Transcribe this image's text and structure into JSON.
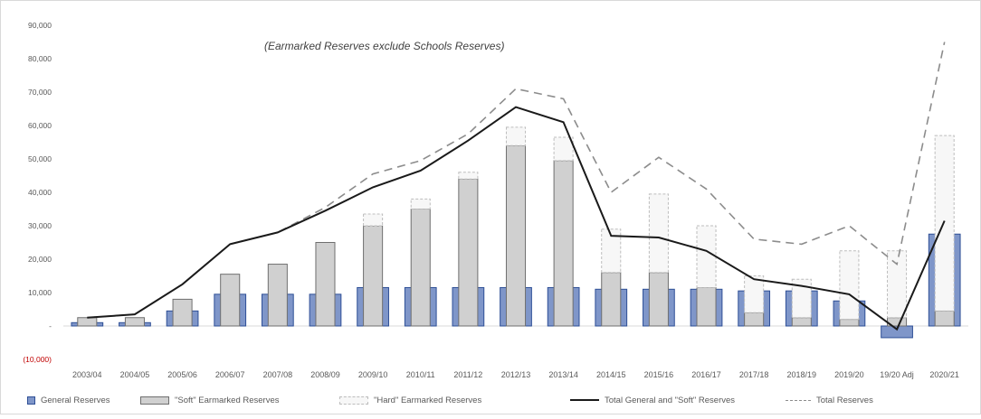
{
  "chart_data": {
    "type": "bar",
    "title": "",
    "annotation": "(Earmarked Reserves exclude Schools Reserves)",
    "categories": [
      "2003/04",
      "2004/05",
      "2005/06",
      "2006/07",
      "2007/08",
      "2008/09",
      "2009/10",
      "2010/11",
      "2011/12",
      "2012/13",
      "2013/14",
      "2014/15",
      "2015/16",
      "2016/17",
      "2017/18",
      "2018/19",
      "2019/20",
      "19/20 Adj",
      "2020/21"
    ],
    "y_ticks": [
      "90,000",
      "80,000",
      "70,000",
      "60,000",
      "50,000",
      "40,000",
      "30,000",
      "20,000",
      "10,000",
      "-",
      "(10,000)"
    ],
    "ylim": [
      -10000,
      90000
    ],
    "grid": false,
    "legend_position": "bottom",
    "series": [
      {
        "name": "General Reserves",
        "type": "bar",
        "values": [
          1000,
          1000,
          4500,
          9500,
          9500,
          9500,
          11500,
          11500,
          11500,
          11500,
          11500,
          11000,
          11000,
          11000,
          10500,
          10500,
          7500,
          -3500,
          27500
        ]
      },
      {
        "name": "\"Soft\" Earmarked Reserves",
        "type": "bar",
        "values": [
          2500,
          2500,
          8000,
          15500,
          18500,
          25000,
          30000,
          35000,
          44000,
          54000,
          49500,
          16000,
          16000,
          11500,
          4000,
          2500,
          2000,
          2500,
          4500
        ]
      },
      {
        "name": "\"Hard\" Earmarked Reserves",
        "type": "bar",
        "values": [
          0,
          0,
          0,
          0,
          0,
          0,
          3500,
          3000,
          2000,
          5500,
          7000,
          13000,
          23500,
          18500,
          11000,
          11500,
          20500,
          20000,
          52500
        ]
      },
      {
        "name": "Total General and \"Soft\" Reserves",
        "type": "line",
        "style": "solid",
        "values": [
          2500,
          3500,
          12500,
          24500,
          28000,
          34500,
          41500,
          46500,
          55500,
          65500,
          61000,
          27000,
          26500,
          22500,
          14000,
          12000,
          9500,
          -1000,
          31500
        ]
      },
      {
        "name": "Total Reserves",
        "type": "line",
        "style": "dashed",
        "values": [
          2500,
          3500,
          12500,
          24500,
          28000,
          35500,
          45500,
          49500,
          57500,
          71000,
          68000,
          40000,
          50500,
          41000,
          26000,
          24500,
          30000,
          18500,
          85000
        ]
      }
    ],
    "colors": {
      "general_fill": "#7f96c9",
      "general_stroke": "#2e4f96",
      "soft_fill": "#d0d0d0",
      "soft_stroke": "#6f6f6f",
      "hard_fill": "#f7f7f7",
      "hard_stroke": "#bdbdbd",
      "total_soft_line": "#1a1a1a",
      "total_line": "#8c8c8c",
      "negative_tick": "#c00000",
      "tick_text": "#595959"
    }
  }
}
